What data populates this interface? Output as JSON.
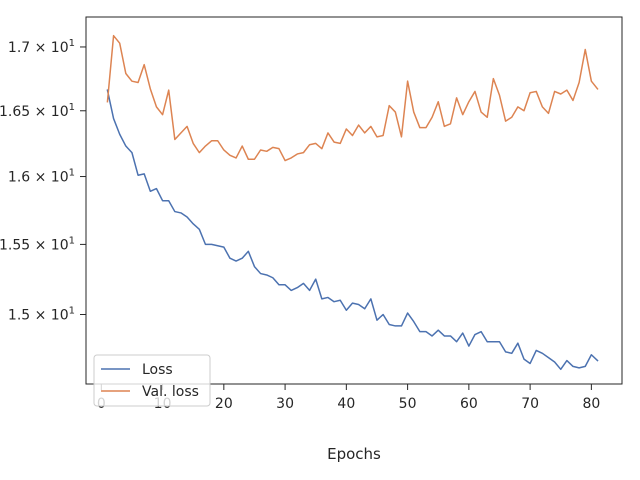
{
  "chart_data": {
    "type": "line",
    "xlabel": "Epochs",
    "ylabel": "",
    "xlim": [
      -2.5,
      85
    ],
    "ylim": [
      14.52,
      17.24
    ],
    "y_scale": "log",
    "grid": false,
    "legend_position": "lower-left",
    "x_ticks": [
      0,
      10,
      20,
      30,
      40,
      50,
      60,
      70,
      80
    ],
    "x_tick_labels": [
      "0",
      "10",
      "20",
      "30",
      "40",
      "50",
      "60",
      "70",
      "80"
    ],
    "y_ticks": [
      15.0,
      15.5,
      16.0,
      16.5,
      17.0
    ],
    "y_tick_mantissas": [
      "1.5",
      "1.55",
      "1.6",
      "1.65",
      "1.7"
    ],
    "y_tick_times": "×",
    "y_tick_base": "10",
    "y_tick_exp": "1",
    "x": [
      1,
      2,
      3,
      4,
      5,
      6,
      7,
      8,
      9,
      10,
      11,
      12,
      13,
      14,
      15,
      16,
      17,
      18,
      19,
      20,
      21,
      22,
      23,
      24,
      25,
      26,
      27,
      28,
      29,
      30,
      31,
      32,
      33,
      34,
      35,
      36,
      37,
      38,
      39,
      40,
      41,
      42,
      43,
      44,
      45,
      46,
      47,
      48,
      49,
      50,
      51,
      52,
      53,
      54,
      55,
      56,
      57,
      58,
      59,
      60,
      61,
      62,
      63,
      64,
      65,
      66,
      67,
      68,
      69,
      70,
      71,
      72,
      73,
      74,
      75,
      76,
      77,
      78,
      79,
      80,
      81
    ],
    "series": [
      {
        "name": "Loss",
        "color": "#4c72b0",
        "values": [
          16.66,
          16.44,
          16.32,
          16.23,
          16.18,
          16.01,
          16.02,
          15.89,
          15.91,
          15.82,
          15.82,
          15.74,
          15.73,
          15.7,
          15.65,
          15.61,
          15.5,
          15.5,
          15.49,
          15.48,
          15.4,
          15.38,
          15.4,
          15.45,
          15.34,
          15.29,
          15.28,
          15.26,
          15.21,
          15.21,
          15.17,
          15.19,
          15.22,
          15.17,
          15.25,
          15.11,
          15.12,
          15.09,
          15.1,
          15.03,
          15.08,
          15.07,
          15.04,
          15.11,
          14.96,
          15.0,
          14.93,
          14.92,
          14.92,
          15.01,
          14.95,
          14.88,
          14.88,
          14.85,
          14.89,
          14.85,
          14.85,
          14.81,
          14.87,
          14.78,
          14.86,
          14.88,
          14.81,
          14.81,
          14.81,
          14.74,
          14.73,
          14.8,
          14.69,
          14.66,
          14.75,
          14.73,
          14.7,
          14.67,
          14.62,
          14.68,
          14.64,
          14.63,
          14.64,
          14.72,
          14.68
        ]
      },
      {
        "name": "Val. loss",
        "color": "#dd8452",
        "values": [
          16.57,
          17.09,
          17.03,
          16.79,
          16.73,
          16.72,
          16.86,
          16.67,
          16.53,
          16.47,
          16.66,
          16.28,
          16.33,
          16.38,
          16.25,
          16.18,
          16.23,
          16.27,
          16.27,
          16.2,
          16.16,
          16.14,
          16.23,
          16.13,
          16.13,
          16.2,
          16.19,
          16.22,
          16.21,
          16.12,
          16.14,
          16.17,
          16.18,
          16.24,
          16.25,
          16.21,
          16.33,
          16.26,
          16.25,
          16.36,
          16.31,
          16.39,
          16.33,
          16.38,
          16.3,
          16.31,
          16.54,
          16.49,
          16.3,
          16.73,
          16.49,
          16.37,
          16.37,
          16.45,
          16.57,
          16.38,
          16.4,
          16.6,
          16.47,
          16.57,
          16.65,
          16.49,
          16.45,
          16.75,
          16.62,
          16.42,
          16.45,
          16.53,
          16.5,
          16.64,
          16.65,
          16.53,
          16.48,
          16.65,
          16.63,
          16.66,
          16.58,
          16.72,
          16.98,
          16.73,
          16.67
        ]
      }
    ]
  }
}
